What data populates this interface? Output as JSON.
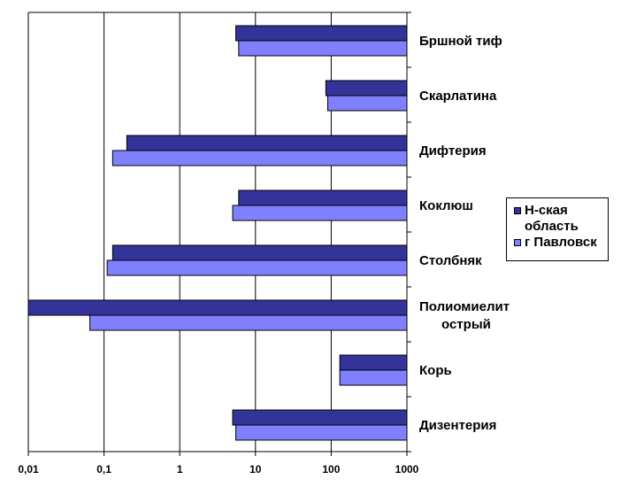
{
  "chart_data": {
    "type": "bar",
    "orientation": "horizontal",
    "x_scale": "log",
    "xlim": [
      0.01,
      1000
    ],
    "x_ticks": [
      0.01,
      0.1,
      1,
      10,
      100,
      1000
    ],
    "x_tick_labels": [
      "0,01",
      "0,1",
      "1",
      "10",
      "100",
      "1000"
    ],
    "grid": true,
    "legend_position": "right",
    "categories": [
      [
        "Бршной тиф"
      ],
      [
        "Скарлатина"
      ],
      [
        "Дифтерия"
      ],
      [
        "Коклюш"
      ],
      [
        "Столбняк"
      ],
      [
        "Полиомиелит",
        "острый"
      ],
      [
        "Корь"
      ],
      [
        "Дизентерия"
      ]
    ],
    "series": [
      {
        "name": "Н-ская область",
        "name_lines": [
          "Н-ская",
          "область"
        ],
        "color": "#333399",
        "values": [
          5.5,
          85,
          0.2,
          6,
          0.13,
          0.01,
          130,
          5
        ]
      },
      {
        "name": "г Павловск",
        "name_lines": [
          "г Павловск"
        ],
        "color": "#8080ff",
        "values": [
          6,
          90,
          0.13,
          5,
          0.11,
          0.065,
          130,
          5.5
        ]
      }
    ]
  }
}
